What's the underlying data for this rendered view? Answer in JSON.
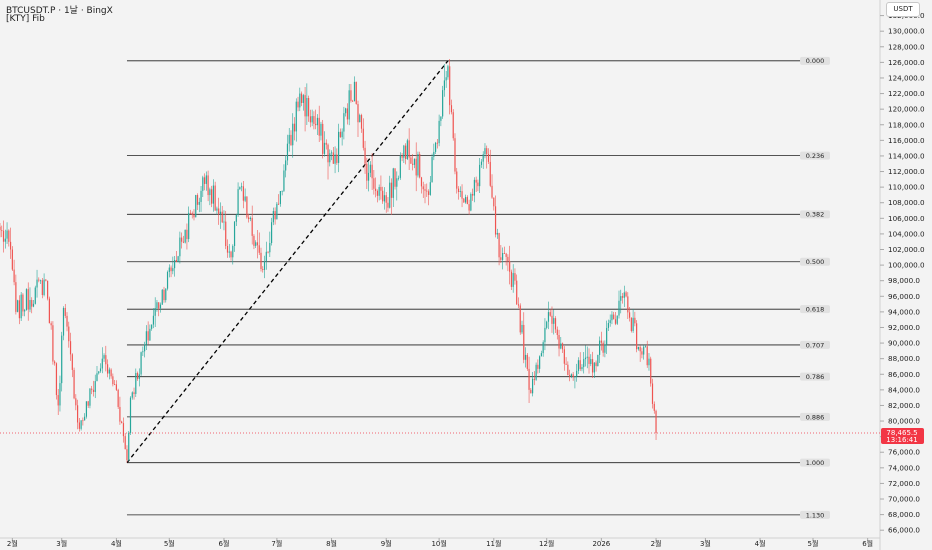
{
  "header": {
    "title": "BTCUSDT.P · 1날 · BingX",
    "indicator": "[KTY] Fib"
  },
  "axis_unit": "USDT",
  "price_tag": {
    "price": "78,465.5",
    "countdown": "13:16:41"
  },
  "colors": {
    "background": "#f3f3f3",
    "up": "#26a69a",
    "down": "#ef5350",
    "fib_line": "#1e1e1e",
    "trend_line": "#000000",
    "price_tag": "#f23645"
  },
  "chart_data": {
    "type": "candlestick",
    "title": "BTCUSDT.P · 1날 · BingX",
    "ylim": [
      65000,
      134000
    ],
    "yticks": [
      66000,
      68000,
      70000,
      72000,
      74000,
      76000,
      78000,
      80000,
      82000,
      84000,
      86000,
      88000,
      90000,
      92000,
      94000,
      96000,
      98000,
      100000,
      102000,
      104000,
      106000,
      108000,
      110000,
      112000,
      114000,
      116000,
      118000,
      120000,
      122000,
      124000,
      126000,
      128000,
      130000,
      132000
    ],
    "ytick_labels": [
      "66,000.0",
      "68,000.0",
      "70,000.0",
      "72,000.0",
      "74,000.0",
      "76,000.0",
      "78,000.0",
      "80,000.0",
      "82,000.0",
      "84,000.0",
      "86,000.0",
      "88,000.0",
      "90,000.0",
      "92,000.0",
      "94,000.0",
      "96,000.0",
      "98,000.0",
      "100,000.0",
      "102,000.0",
      "104,000.0",
      "106,000.0",
      "108,000.0",
      "110,000.0",
      "112,000.0",
      "114,000.0",
      "116,000.0",
      "118,000.0",
      "120,000.0",
      "122,000.0",
      "124,000.0",
      "126,000.0",
      "128,000.0",
      "130,000.0",
      "132,000.0"
    ],
    "xlim": [
      "2025-01-25",
      "2026-06-08"
    ],
    "xticks": [
      "2025-02-01",
      "2025-03-01",
      "2025-04-01",
      "2025-05-01",
      "2025-06-01",
      "2025-07-01",
      "2025-08-01",
      "2025-09-01",
      "2025-10-01",
      "2025-11-01",
      "2025-12-01",
      "2026-01-01",
      "2026-02-01",
      "2026-03-01",
      "2026-04-01",
      "2026-05-01",
      "2026-06-01"
    ],
    "xtick_labels": [
      "2월",
      "3월",
      "4월",
      "5월",
      "6월",
      "7월",
      "8월",
      "9월",
      "10월",
      "11월",
      "12월",
      "2026",
      "2월",
      "3월",
      "4월",
      "5월",
      "6월"
    ],
    "anchors": [
      {
        "date": "2025-01-25",
        "price": 104500
      },
      {
        "date": "2025-01-31",
        "price": 102000
      },
      {
        "date": "2025-02-03",
        "price": 94000
      },
      {
        "date": "2025-02-20",
        "price": 98000
      },
      {
        "date": "2025-02-27",
        "price": 82000
      },
      {
        "date": "2025-03-02",
        "price": 94500
      },
      {
        "date": "2025-03-11",
        "price": 79000
      },
      {
        "date": "2025-03-24",
        "price": 88000
      },
      {
        "date": "2025-04-01",
        "price": 84000
      },
      {
        "date": "2025-04-07",
        "price": 75000
      },
      {
        "date": "2025-04-09",
        "price": 83000
      },
      {
        "date": "2025-04-22",
        "price": 93500
      },
      {
        "date": "2025-05-08",
        "price": 103000
      },
      {
        "date": "2025-05-22",
        "price": 111500
      },
      {
        "date": "2025-06-05",
        "price": 101000
      },
      {
        "date": "2025-06-10",
        "price": 110000
      },
      {
        "date": "2025-06-22",
        "price": 99500
      },
      {
        "date": "2025-07-03",
        "price": 109500
      },
      {
        "date": "2025-07-14",
        "price": 122000
      },
      {
        "date": "2025-08-02",
        "price": 113000
      },
      {
        "date": "2025-08-14",
        "price": 123500
      },
      {
        "date": "2025-08-20",
        "price": 113000
      },
      {
        "date": "2025-09-01",
        "price": 108000
      },
      {
        "date": "2025-09-13",
        "price": 116000
      },
      {
        "date": "2025-09-25",
        "price": 109000
      },
      {
        "date": "2025-10-01",
        "price": 118500
      },
      {
        "date": "2025-10-06",
        "price": 125500
      },
      {
        "date": "2025-10-10",
        "price": 112000
      },
      {
        "date": "2025-10-18",
        "price": 107000
      },
      {
        "date": "2025-10-27",
        "price": 115000
      },
      {
        "date": "2025-11-04",
        "price": 101000
      },
      {
        "date": "2025-11-13",
        "price": 98000
      },
      {
        "date": "2025-11-21",
        "price": 84000
      },
      {
        "date": "2025-12-03",
        "price": 93500
      },
      {
        "date": "2025-12-15",
        "price": 86000
      },
      {
        "date": "2025-12-28",
        "price": 87500
      },
      {
        "date": "2026-01-14",
        "price": 96500
      },
      {
        "date": "2026-01-22",
        "price": 89500
      },
      {
        "date": "2026-01-28",
        "price": 88000
      },
      {
        "date": "2026-02-01",
        "price": 78465.5
      }
    ],
    "fib_levels": [
      {
        "ratio": "0.000",
        "price": 126200
      },
      {
        "ratio": "0.236",
        "price": 114036
      },
      {
        "ratio": "0.382",
        "price": 106512
      },
      {
        "ratio": "0.500",
        "price": 100430
      },
      {
        "ratio": "0.618",
        "price": 94349
      },
      {
        "ratio": "0.707",
        "price": 89762
      },
      {
        "ratio": "0.786",
        "price": 85691
      },
      {
        "ratio": "0.886",
        "price": 80537
      },
      {
        "ratio": "1.000",
        "price": 74662
      },
      {
        "ratio": "1.130",
        "price": 67962
      }
    ],
    "fib_range": {
      "from": "2025-04-07",
      "to": "2026-04-26"
    },
    "trend_line": {
      "from": {
        "date": "2025-04-07",
        "price": 74662
      },
      "to": {
        "date": "2025-10-06",
        "price": 126200
      }
    },
    "current_price": 78465.5
  }
}
